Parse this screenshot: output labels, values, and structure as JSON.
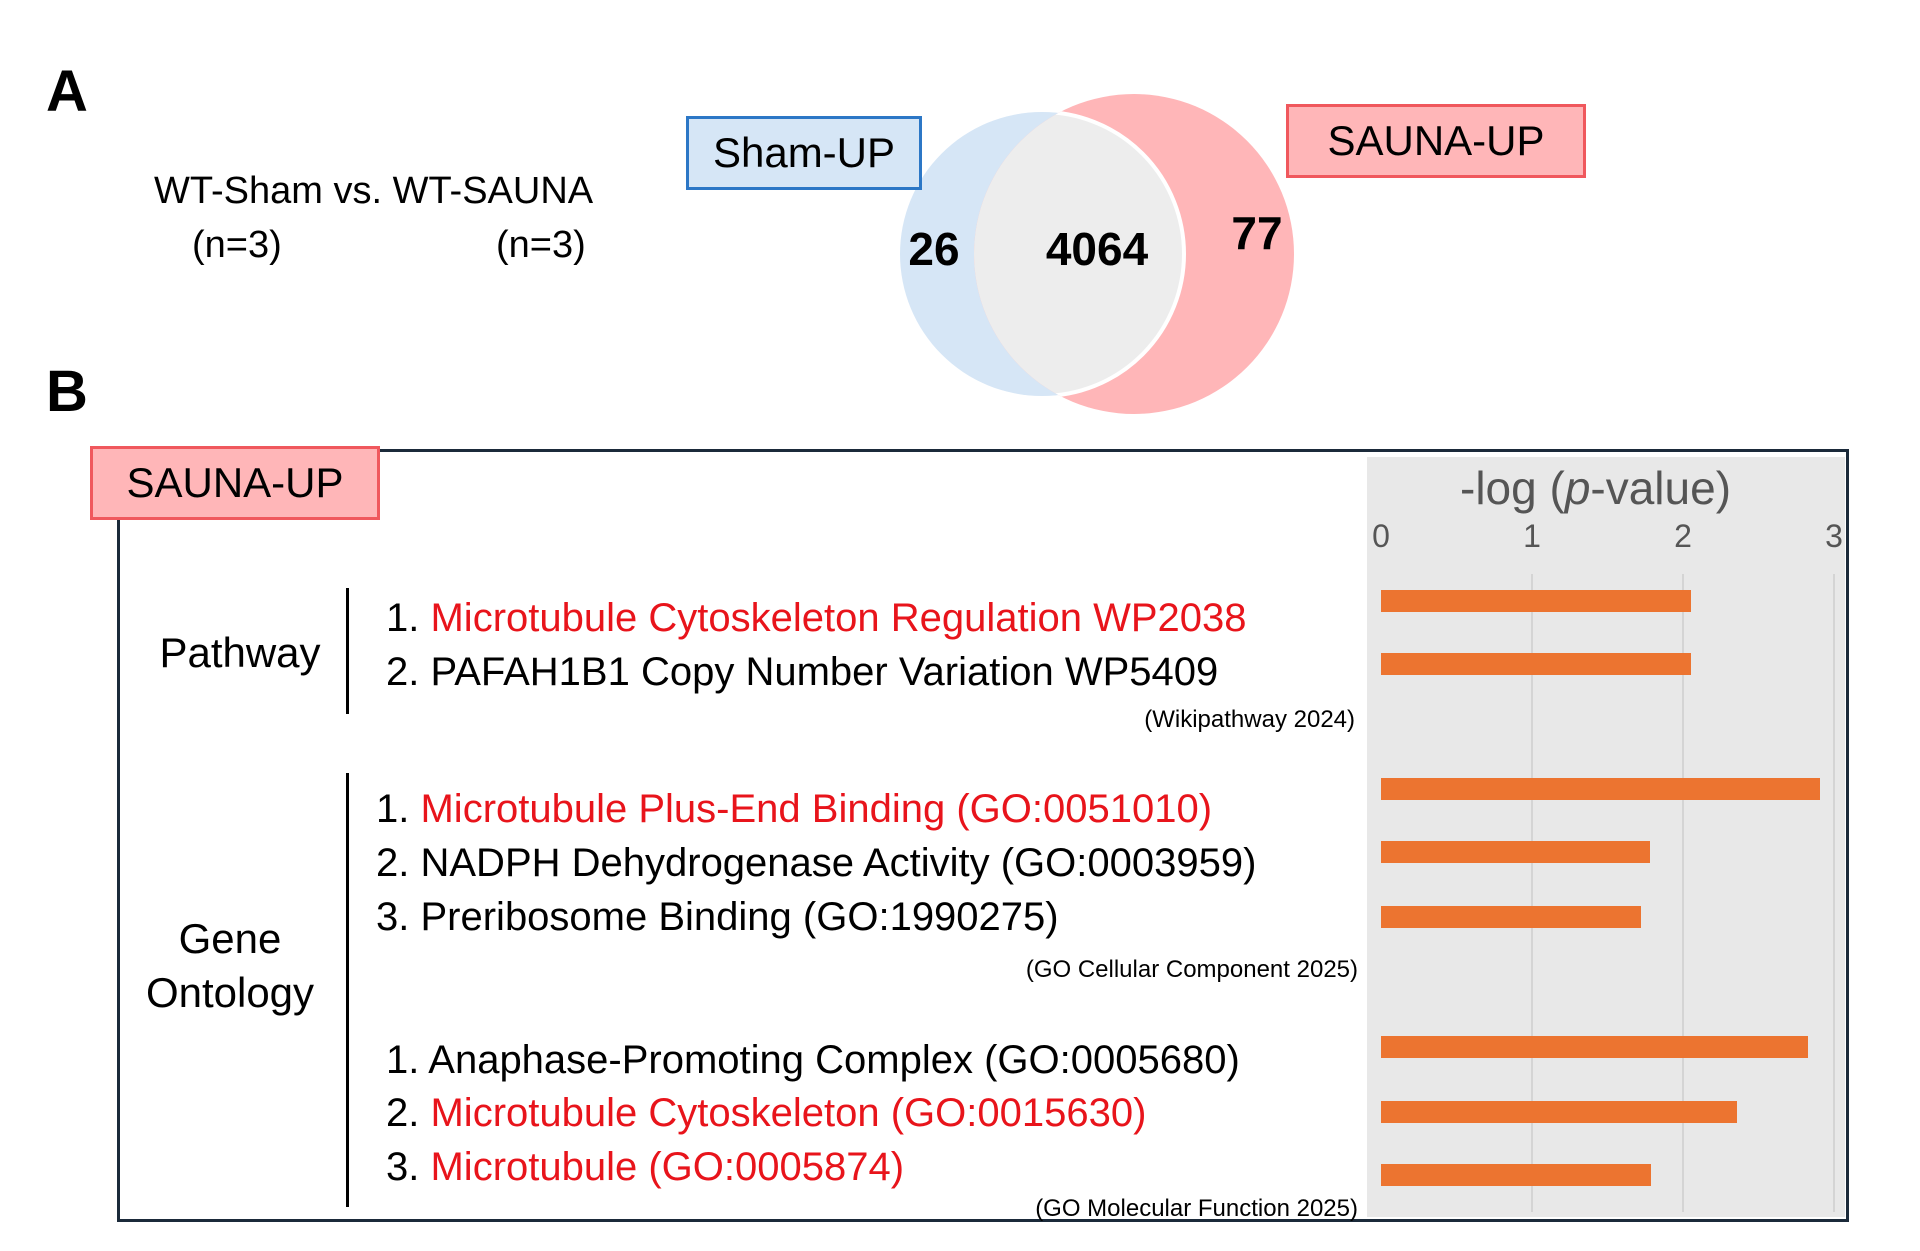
{
  "panels": {
    "a": "A",
    "b": "B"
  },
  "comparison": {
    "title": "WT-Sham vs. WT-SAUNA",
    "n_left": "(n=3)",
    "n_right": "(n=3)"
  },
  "venn": {
    "left_label": "Sham-UP",
    "right_label": "SAUNA-UP",
    "left_only": "26",
    "overlap": "4064",
    "right_only": "77",
    "colors": {
      "left": "#d6e6f6",
      "right": "#ffb6b8",
      "overlap": "#ededed",
      "left_border": "#2c77c6",
      "right_border": "#f0585d"
    }
  },
  "panel_b": {
    "tag": "SAUNA-UP",
    "categories": {
      "pathway": "Pathway",
      "go_line1": "Gene",
      "go_line2": "Ontology"
    },
    "groups": [
      {
        "source": "(Wikipathway 2024)",
        "terms": [
          {
            "num": "1. ",
            "text": "Microtubule Cytoskeleton Regulation WP2038",
            "highlight": true
          },
          {
            "num": "2. ",
            "text": "PAFAH1B1 Copy Number Variation WP5409",
            "highlight": false
          }
        ]
      },
      {
        "source": "(GO Cellular Component 2025)",
        "terms": [
          {
            "num": "1. ",
            "text": "Microtubule Plus-End Binding (GO:0051010)",
            "highlight": true
          },
          {
            "num": "2. ",
            "text": "NADPH Dehydrogenase Activity (GO:0003959)",
            "highlight": false
          },
          {
            "num": "3. ",
            "text": "Preribosome Binding (GO:1990275)",
            "highlight": false
          }
        ]
      },
      {
        "source": "(GO Molecular Function 2025)",
        "terms": [
          {
            "num": "1. ",
            "text": "Anaphase-Promoting Complex (GO:0005680)",
            "highlight": false
          },
          {
            "num": "2. ",
            "text": "Microtubule Cytoskeleton (GO:0015630)",
            "highlight": true
          },
          {
            "num": "3. ",
            "text": "Microtubule (GO:0005874)",
            "highlight": true
          }
        ]
      }
    ],
    "highlight_color": "#e8141b"
  },
  "chart_data": {
    "type": "bar",
    "orientation": "horizontal",
    "title": "-log (p-value)",
    "title_parts": {
      "pre": "-log (",
      "italic": "p",
      "post": "-value)"
    },
    "xlim": [
      0,
      3
    ],
    "xticks": [
      "0",
      "1",
      "2",
      "3"
    ],
    "grid": true,
    "bar_color": "#ec7430",
    "categories": [
      "Microtubule Cytoskeleton Regulation WP2038",
      "PAFAH1B1 Copy Number Variation WP5409",
      "Microtubule Plus-End Binding (GO:0051010)",
      "NADPH Dehydrogenase Activity (GO:0003959)",
      "Preribosome Binding (GO:1990275)",
      "Anaphase-Promoting Complex (GO:0005680)",
      "Microtubule Cytoskeleton (GO:0015630)",
      "Microtubule (GO:0005874)"
    ],
    "values": [
      2.05,
      2.05,
      2.91,
      1.78,
      1.72,
      2.83,
      2.36,
      1.79
    ]
  }
}
